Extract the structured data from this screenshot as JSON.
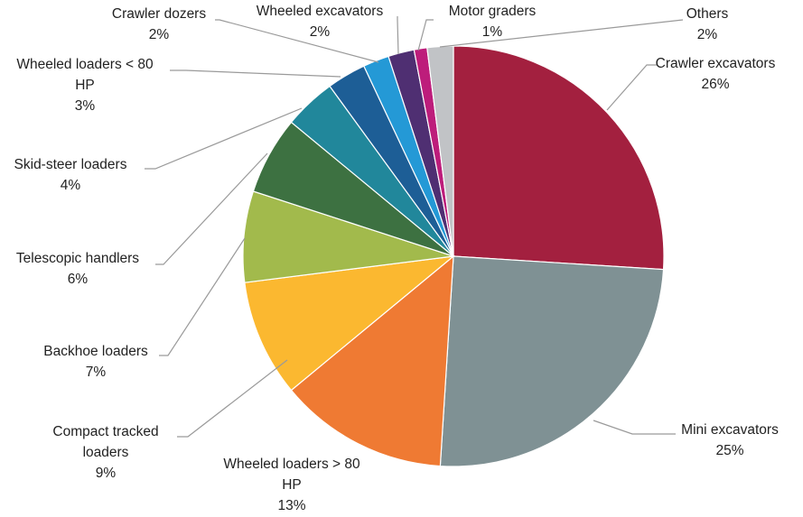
{
  "chart_data": {
    "type": "pie",
    "title": "",
    "slices": [
      {
        "label": "Crawler excavators",
        "value": 26,
        "value_label": "26%",
        "color": "#a3203f"
      },
      {
        "label": "Mini excavators",
        "value": 25,
        "value_label": "25%",
        "color": "#7f9194"
      },
      {
        "label": "Wheeled loaders > 80 HP",
        "value": 13,
        "value_label": "13%",
        "color": "#ef7a33"
      },
      {
        "label": "Compact tracked loaders",
        "value": 9,
        "value_label": "9%",
        "color": "#fbb830"
      },
      {
        "label": "Backhoe loaders",
        "value": 7,
        "value_label": "7%",
        "color": "#a2ba4c"
      },
      {
        "label": "Telescopic handlers",
        "value": 6,
        "value_label": "6%",
        "color": "#3d7141"
      },
      {
        "label": "Skid-steer loaders",
        "value": 4,
        "value_label": "4%",
        "color": "#21879b"
      },
      {
        "label": "Wheeled loaders < 80 HP",
        "value": 3,
        "value_label": "3%",
        "color": "#1d5e96"
      },
      {
        "label": "Crawler dozers",
        "value": 2,
        "value_label": "2%",
        "color": "#2499d6"
      },
      {
        "label": "Wheeled excavators",
        "value": 2,
        "value_label": "2%",
        "color": "#4f2f72"
      },
      {
        "label": "Motor graders",
        "value": 1,
        "value_label": "1%",
        "color": "#bd1d7b"
      },
      {
        "label": "Others",
        "value": 2,
        "value_label": "2%",
        "color": "#c1c3c6"
      }
    ]
  }
}
